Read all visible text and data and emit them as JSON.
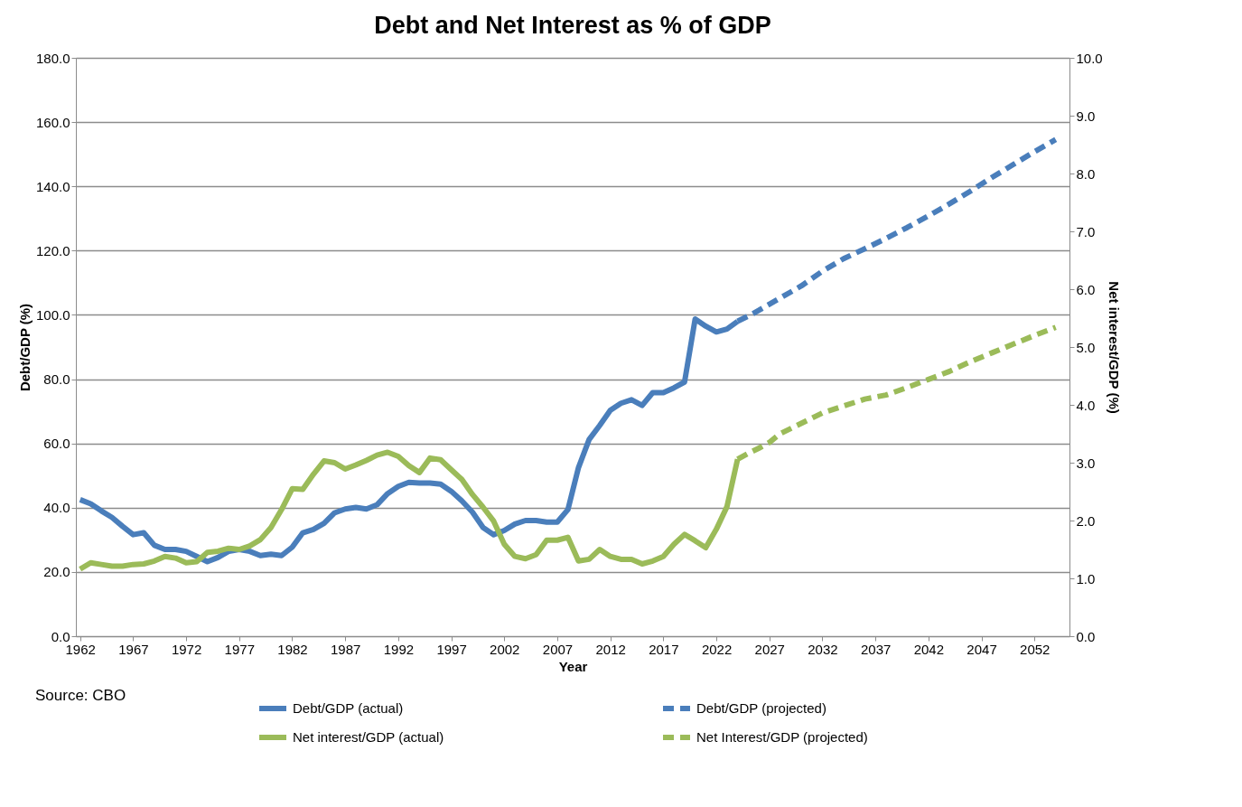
{
  "chart_data": {
    "type": "line",
    "title": "Debt and Net Interest as % of GDP",
    "xlabel": "Year",
    "ylabel": "Debt/GDP (%)",
    "y2label": "Net interest/GDP (%)",
    "xlim": [
      1961.6,
      2055.3
    ],
    "xticks": [
      1962,
      1967,
      1972,
      1977,
      1982,
      1987,
      1992,
      1997,
      2002,
      2007,
      2012,
      2017,
      2022,
      2027,
      2032,
      2037,
      2042,
      2047,
      2052
    ],
    "ylim": [
      0,
      180
    ],
    "yticks": [
      {
        "value": 0,
        "label": "0.0"
      },
      {
        "value": 20,
        "label": "20.0"
      },
      {
        "value": 40,
        "label": "40.0"
      },
      {
        "value": 60,
        "label": "60.0"
      },
      {
        "value": 80,
        "label": "80.0"
      },
      {
        "value": 100,
        "label": "100.0"
      },
      {
        "value": 120,
        "label": "120.0"
      },
      {
        "value": 140,
        "label": "140.0"
      },
      {
        "value": 160,
        "label": "160.0"
      },
      {
        "value": 180,
        "label": "180.0"
      }
    ],
    "y2lim": [
      0,
      10
    ],
    "y2ticks": [
      {
        "value": 0,
        "label": "0.0"
      },
      {
        "value": 1,
        "label": "1.0"
      },
      {
        "value": 2,
        "label": "2.0"
      },
      {
        "value": 3,
        "label": "3.0"
      },
      {
        "value": 4,
        "label": "4.0"
      },
      {
        "value": 5,
        "label": "5.0"
      },
      {
        "value": 6,
        "label": "6.0"
      },
      {
        "value": 7,
        "label": "7.0"
      },
      {
        "value": 8,
        "label": "8.0"
      },
      {
        "value": 9,
        "label": "9.0"
      },
      {
        "value": 10,
        "label": "10.0"
      }
    ],
    "grid": "y",
    "legend": "bottom",
    "annotations": [
      "Source: CBO"
    ],
    "series": [
      {
        "name": "Debt/GDP (actual)",
        "color": "#4a7ebb",
        "line_style": "solid",
        "axis": "y",
        "x": [
          1962,
          1963,
          1964,
          1965,
          1966,
          1967,
          1968,
          1969,
          1970,
          1971,
          1972,
          1973,
          1974,
          1975,
          1976,
          1977,
          1978,
          1979,
          1980,
          1981,
          1982,
          1983,
          1984,
          1985,
          1986,
          1987,
          1988,
          1989,
          1990,
          1991,
          1992,
          1993,
          1994,
          1995,
          1996,
          1997,
          1998,
          1999,
          2000,
          2001,
          2002,
          2003,
          2004,
          2005,
          2006,
          2007,
          2008,
          2009,
          2010,
          2011,
          2012,
          2013,
          2014,
          2015,
          2016,
          2017,
          2018,
          2019,
          2020,
          2021,
          2022,
          2023,
          2024
        ],
        "values": [
          42.5,
          41.2,
          39.0,
          37.0,
          34.2,
          31.6,
          32.2,
          28.3,
          27.0,
          27.0,
          26.4,
          24.8,
          23.2,
          24.5,
          26.4,
          27.0,
          26.4,
          25.1,
          25.5,
          25.1,
          27.7,
          32.2,
          33.2,
          35.1,
          38.4,
          39.6,
          40.1,
          39.6,
          40.9,
          44.4,
          46.6,
          47.9,
          47.7,
          47.7,
          47.3,
          45.1,
          42.1,
          38.6,
          33.8,
          31.6,
          32.9,
          34.9,
          36.0,
          36.0,
          35.5,
          35.5,
          39.4,
          52.5,
          61.2,
          65.6,
          70.3,
          72.5,
          73.6,
          71.8,
          75.8,
          75.8,
          77.3,
          79.1,
          98.7,
          96.5,
          94.7,
          95.6,
          98.0
        ]
      },
      {
        "name": "Debt/GDP (projected)",
        "color": "#4a7ebb",
        "line_style": "dashed",
        "axis": "y",
        "x": [
          2024,
          2025,
          2026,
          2028,
          2030,
          2032,
          2034,
          2036,
          2038,
          2040,
          2042,
          2044,
          2046,
          2048,
          2050,
          2052,
          2054
        ],
        "values": [
          98.0,
          99.6,
          101.4,
          105.2,
          109.0,
          113.6,
          117.5,
          120.6,
          123.8,
          127.2,
          130.8,
          134.6,
          138.6,
          142.8,
          146.8,
          150.8,
          154.6
        ]
      },
      {
        "name": "Net interest/GDP (actual)",
        "color": "#9bbb59",
        "line_style": "solid",
        "axis": "y2",
        "x": [
          1962,
          1963,
          1964,
          1965,
          1966,
          1967,
          1968,
          1969,
          1970,
          1971,
          1972,
          1973,
          1974,
          1975,
          1976,
          1977,
          1978,
          1979,
          1980,
          1981,
          1982,
          1983,
          1984,
          1985,
          1986,
          1987,
          1988,
          1989,
          1990,
          1991,
          1992,
          1993,
          1994,
          1995,
          1996,
          1997,
          1998,
          1999,
          2000,
          2001,
          2002,
          2003,
          2004,
          2005,
          2006,
          2007,
          2008,
          2009,
          2010,
          2011,
          2012,
          2013,
          2014,
          2015,
          2016,
          2017,
          2018,
          2019,
          2020,
          2021,
          2022,
          2023,
          2024
        ],
        "values": [
          1.16,
          1.27,
          1.24,
          1.21,
          1.21,
          1.24,
          1.25,
          1.3,
          1.38,
          1.35,
          1.27,
          1.29,
          1.45,
          1.47,
          1.52,
          1.5,
          1.56,
          1.67,
          1.88,
          2.19,
          2.55,
          2.54,
          2.8,
          3.03,
          3.0,
          2.89,
          2.96,
          3.04,
          3.13,
          3.18,
          3.11,
          2.95,
          2.83,
          3.08,
          3.05,
          2.88,
          2.71,
          2.45,
          2.23,
          1.99,
          1.59,
          1.38,
          1.34,
          1.41,
          1.66,
          1.66,
          1.71,
          1.3,
          1.33,
          1.5,
          1.38,
          1.33,
          1.33,
          1.25,
          1.3,
          1.38,
          1.59,
          1.76,
          1.65,
          1.53,
          1.85,
          2.24,
          3.06
        ]
      },
      {
        "name": "Net Interest/GDP (projected)",
        "color": "#9bbb59",
        "line_style": "dashed",
        "axis": "y2",
        "x": [
          2024,
          2025,
          2026,
          2027,
          2028,
          2030,
          2032,
          2034,
          2036,
          2038,
          2040,
          2042,
          2044,
          2046,
          2048,
          2050,
          2052,
          2054
        ],
        "values": [
          3.06,
          3.16,
          3.25,
          3.35,
          3.5,
          3.68,
          3.86,
          3.98,
          4.1,
          4.17,
          4.3,
          4.44,
          4.58,
          4.75,
          4.9,
          5.05,
          5.2,
          5.34
        ]
      }
    ]
  }
}
